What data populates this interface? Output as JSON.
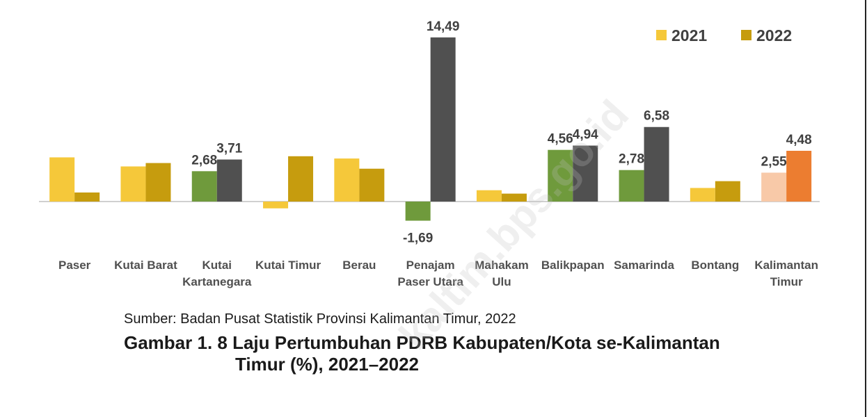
{
  "chart_data": {
    "type": "bar",
    "categories": [
      [
        "Paser"
      ],
      [
        "Kutai Barat"
      ],
      [
        "Kutai",
        "Kartanegara"
      ],
      [
        "Kutai Timur"
      ],
      [
        "Berau"
      ],
      [
        "Penajam",
        "Paser Utara"
      ],
      [
        "Mahakam",
        "Ulu"
      ],
      [
        "Balikpapan"
      ],
      [
        "Samarinda"
      ],
      [
        "Bontang"
      ],
      [
        "Kalimantan",
        "Timur"
      ]
    ],
    "series": [
      {
        "name": "2021",
        "color": "#F5C83A",
        "values": [
          3.9,
          3.1,
          2.68,
          -0.6,
          3.8,
          -1.69,
          1.0,
          4.56,
          2.78,
          1.2,
          2.55
        ]
      },
      {
        "name": "2022",
        "color": "#C69C0E",
        "values": [
          0.8,
          3.4,
          3.71,
          4.0,
          2.9,
          14.49,
          0.7,
          4.94,
          6.58,
          1.8,
          4.48
        ]
      }
    ],
    "bar_colors": [
      [
        "#F5C83A",
        "#C69C0E"
      ],
      [
        "#F5C83A",
        "#C69C0E"
      ],
      [
        "#6F9A3C",
        "#505050"
      ],
      [
        "#F5C83A",
        "#C69C0E"
      ],
      [
        "#F5C83A",
        "#C69C0E"
      ],
      [
        "#6F9A3C",
        "#505050"
      ],
      [
        "#F5C83A",
        "#C69C0E"
      ],
      [
        "#6F9A3C",
        "#505050"
      ],
      [
        "#6F9A3C",
        "#505050"
      ],
      [
        "#F5C83A",
        "#C69C0E"
      ],
      [
        "#F8C9A8",
        "#EC7D30"
      ]
    ],
    "data_labels": [
      [
        null,
        null
      ],
      [
        null,
        null
      ],
      [
        "2,68",
        "3,71"
      ],
      [
        null,
        null
      ],
      [
        null,
        null
      ],
      [
        "-1,69",
        "14,49"
      ],
      [
        null,
        null
      ],
      [
        "4,56",
        "4,94"
      ],
      [
        "2,78",
        "6,58"
      ],
      [
        null,
        null
      ],
      [
        "2,55",
        "4,48"
      ]
    ],
    "legend": {
      "position": "top-right",
      "items": [
        "2021",
        "2022"
      ]
    },
    "grid": false,
    "title": "",
    "xlabel": "",
    "ylabel": ""
  },
  "caption": {
    "source": "Sumber: Badan Pusat Statistik Provinsi Kalimantan Timur, 2022",
    "title_line1": "Gambar 1. 8 Laju Pertumbuhan PDRB Kabupaten/Kota se-Kalimantan",
    "title_line2": "Timur (%), 2021–2022"
  },
  "watermark": "kaltim.bps.go.id"
}
